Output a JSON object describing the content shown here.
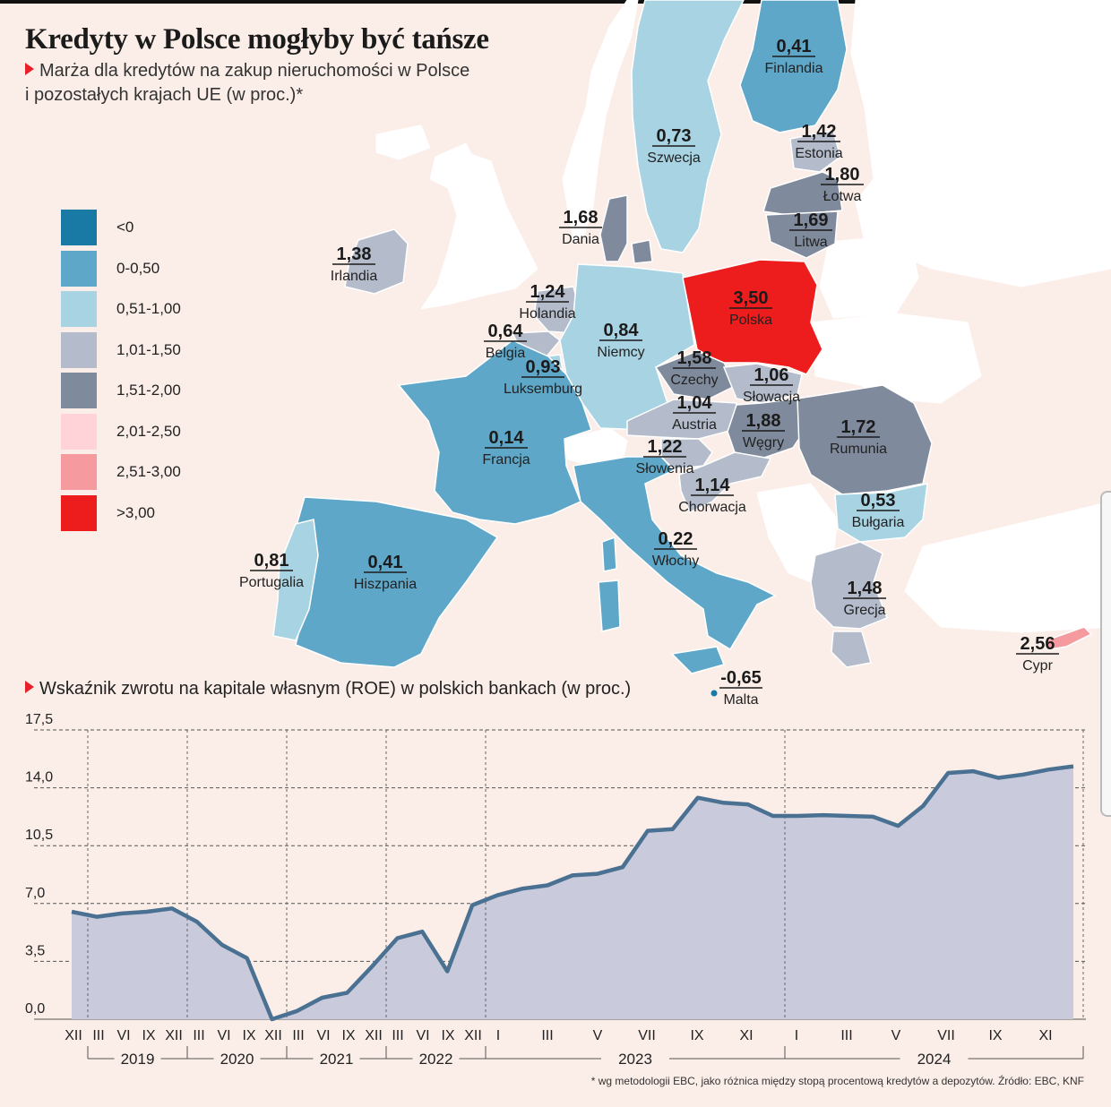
{
  "title": "Kredyty w Polsce mogłyby być tańsze",
  "subtitle_line1": "Marża dla kredytów na zakup nieruchomości w Polsce",
  "subtitle_line2": "i pozostałych krajach UE (w proc.)*",
  "roe_title": "Wskaźnik zwrotu na kapitale własnym (ROE) w polskich bankach (w proc.)",
  "footnote": "* wg metodologii EBC, jako różnica między stopą procentową kredytów a depozytów. Źródło: EBC, KNF",
  "chart_data": [
    {
      "type": "map",
      "legend": [
        {
          "label": "<0",
          "color": "#1a7aa6"
        },
        {
          "label": "0-0,50",
          "color": "#5ea7c8"
        },
        {
          "label": "0,51-1,00",
          "color": "#a8d3e3"
        },
        {
          "label": "1,01-1,50",
          "color": "#b4bccb"
        },
        {
          "label": "1,51-2,00",
          "color": "#7f8a9c"
        },
        {
          "label": "2,01-2,50",
          "color": "#ffd3d8"
        },
        {
          "label": "2,51-3,00",
          "color": "#f59b9f"
        },
        {
          "label": ">3,00",
          "color": "#ee1d1d"
        }
      ],
      "countries": [
        {
          "name": "Finlandia",
          "value": "0,41"
        },
        {
          "name": "Szwecja",
          "value": "0,73"
        },
        {
          "name": "Estonia",
          "value": "1,42"
        },
        {
          "name": "Łotwa",
          "value": "1,80"
        },
        {
          "name": "Litwa",
          "value": "1,69"
        },
        {
          "name": "Dania",
          "value": "1,68"
        },
        {
          "name": "Irlandia",
          "value": "1,38"
        },
        {
          "name": "Holandia",
          "value": "1,24"
        },
        {
          "name": "Polska",
          "value": "3,50"
        },
        {
          "name": "Belgia",
          "value": "0,64"
        },
        {
          "name": "Niemcy",
          "value": "0,84"
        },
        {
          "name": "Luksemburg",
          "value": "0,93"
        },
        {
          "name": "Czechy",
          "value": "1,58"
        },
        {
          "name": "Słowacja",
          "value": "1,06"
        },
        {
          "name": "Austria",
          "value": "1,04"
        },
        {
          "name": "Węgry",
          "value": "1,88"
        },
        {
          "name": "Rumunia",
          "value": "1,72"
        },
        {
          "name": "Francja",
          "value": "0,14"
        },
        {
          "name": "Słowenia",
          "value": "1,22"
        },
        {
          "name": "Chorwacja",
          "value": "1,14"
        },
        {
          "name": "Bułgaria",
          "value": "0,53"
        },
        {
          "name": "Portugalia",
          "value": "0,81"
        },
        {
          "name": "Hiszpania",
          "value": "0,41"
        },
        {
          "name": "Włochy",
          "value": "0,22"
        },
        {
          "name": "Grecja",
          "value": "1,48"
        },
        {
          "name": "Cypr",
          "value": "2,56"
        },
        {
          "name": "Malta",
          "value": "-0,65"
        }
      ]
    },
    {
      "type": "area",
      "ylim": [
        0,
        17.5
      ],
      "y_ticks": [
        "0,0",
        "3,5",
        "7,0",
        "10,5",
        "14,0",
        "17,5"
      ],
      "month_labels": [
        "XII",
        "III",
        "VI",
        "IX",
        "XII",
        "III",
        "VI",
        "IX",
        "XII",
        "III",
        "VI",
        "IX",
        "XII",
        "III",
        "VI",
        "IX",
        "XII",
        "I",
        "III",
        "V",
        "VII",
        "IX",
        "XI",
        "I",
        "III",
        "V",
        "VII",
        "IX",
        "XI"
      ],
      "year_labels": [
        "2019",
        "2020",
        "2021",
        "2022",
        "2023",
        "2024"
      ],
      "line_color": "#4a7191",
      "fill_color": "#c9cbdd",
      "values": [
        6.5,
        6.2,
        6.4,
        6.5,
        6.7,
        5.9,
        4.5,
        3.7,
        0.0,
        0.5,
        1.3,
        1.6,
        3.2,
        4.9,
        5.3,
        2.9,
        6.9,
        7.5,
        7.9,
        8.1,
        8.7,
        8.8,
        9.2,
        11.4,
        11.5,
        13.4,
        13.1,
        13.0,
        12.3,
        12.3,
        12.35,
        12.3,
        12.25,
        11.7,
        12.9,
        14.9,
        15.0,
        14.6,
        14.8,
        15.1,
        15.3
      ]
    }
  ]
}
